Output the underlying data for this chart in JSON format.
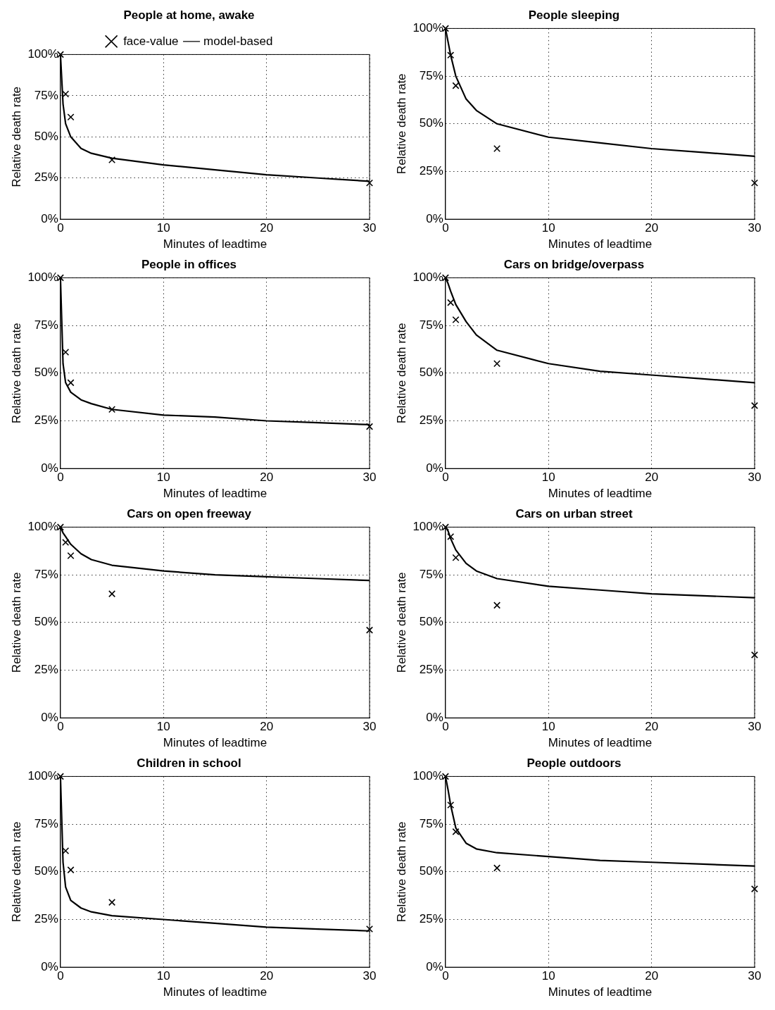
{
  "chart_data": [
    {
      "type": "line",
      "title": "People at home, awake",
      "xlabel": "Minutes of leadtime",
      "ylabel": "Relative death rate",
      "xlim": [
        0,
        30
      ],
      "xticks": [
        0,
        10,
        20,
        30
      ],
      "ylim": [
        0,
        100
      ],
      "yticks": [
        {
          "value": 0,
          "label": "0%"
        },
        {
          "value": 25,
          "label": "25%"
        },
        {
          "value": 50,
          "label": "50%"
        },
        {
          "value": 75,
          "label": "75%"
        },
        {
          "value": 100,
          "label": "100%"
        }
      ],
      "grid": true,
      "legend": "top",
      "series": [
        {
          "name": "model-based",
          "type": "line",
          "color": "#000000",
          "marker": "none",
          "x": [
            0,
            0.25,
            0.5,
            1,
            2,
            3,
            5,
            10,
            15,
            20,
            25,
            30
          ],
          "values": [
            100,
            70,
            58,
            50,
            43,
            40,
            37,
            33,
            30,
            27,
            25,
            23
          ]
        },
        {
          "name": "face-value",
          "type": "scatter",
          "color": "#000000",
          "marker": "cross",
          "x": [
            0,
            0.5,
            1,
            5,
            30
          ],
          "values": [
            100,
            76,
            62,
            36,
            22
          ]
        }
      ]
    },
    {
      "type": "line",
      "title": "People sleeping",
      "xlabel": "Minutes of leadtime",
      "ylabel": "Relative death rate",
      "xlim": [
        0,
        30
      ],
      "xticks": [
        0,
        10,
        20,
        30
      ],
      "ylim": [
        0,
        100
      ],
      "yticks": [
        {
          "value": 0,
          "label": "0%"
        },
        {
          "value": 25,
          "label": "25%"
        },
        {
          "value": 50,
          "label": "50%"
        },
        {
          "value": 75,
          "label": "75%"
        },
        {
          "value": 100,
          "label": "100%"
        }
      ],
      "grid": true,
      "series": [
        {
          "type": "line",
          "color": "#000000",
          "marker": "none",
          "x": [
            0,
            0.25,
            0.5,
            1,
            2,
            3,
            5,
            10,
            15,
            20,
            25,
            30
          ],
          "values": [
            100,
            93,
            86,
            75,
            63,
            57,
            50,
            43,
            40,
            37,
            35,
            33
          ]
        },
        {
          "type": "scatter",
          "color": "#000000",
          "marker": "cross",
          "x": [
            0,
            0.5,
            1,
            5,
            30
          ],
          "values": [
            100,
            86,
            70,
            37,
            19
          ]
        }
      ]
    },
    {
      "type": "line",
      "title": "People in offices",
      "xlabel": "Minutes of leadtime",
      "ylabel": "Relative death rate",
      "xlim": [
        0,
        30
      ],
      "xticks": [
        0,
        10,
        20,
        30
      ],
      "ylim": [
        0,
        100
      ],
      "yticks": [
        {
          "value": 0,
          "label": "0%"
        },
        {
          "value": 25,
          "label": "25%"
        },
        {
          "value": 50,
          "label": "50%"
        },
        {
          "value": 75,
          "label": "75%"
        },
        {
          "value": 100,
          "label": "100%"
        }
      ],
      "grid": true,
      "series": [
        {
          "type": "line",
          "color": "#000000",
          "marker": "none",
          "x": [
            0,
            0.25,
            0.5,
            1,
            2,
            3,
            5,
            10,
            15,
            20,
            25,
            30
          ],
          "values": [
            100,
            55,
            45,
            40,
            36,
            34,
            31,
            28,
            27,
            25,
            24,
            23
          ]
        },
        {
          "type": "scatter",
          "color": "#000000",
          "marker": "cross",
          "x": [
            0,
            0.5,
            1,
            5,
            30
          ],
          "values": [
            100,
            61,
            45,
            31,
            22
          ]
        }
      ]
    },
    {
      "type": "line",
      "title": "Cars on bridge/overpass",
      "xlabel": "Minutes of leadtime",
      "ylabel": "Relative death rate",
      "xlim": [
        0,
        30
      ],
      "xticks": [
        0,
        10,
        20,
        30
      ],
      "ylim": [
        0,
        100
      ],
      "yticks": [
        {
          "value": 0,
          "label": "0%"
        },
        {
          "value": 25,
          "label": "25%"
        },
        {
          "value": 50,
          "label": "50%"
        },
        {
          "value": 75,
          "label": "75%"
        },
        {
          "value": 100,
          "label": "100%"
        }
      ],
      "grid": true,
      "series": [
        {
          "type": "line",
          "color": "#000000",
          "marker": "none",
          "x": [
            0,
            0.25,
            0.5,
            1,
            2,
            3,
            5,
            10,
            15,
            20,
            25,
            30
          ],
          "values": [
            100,
            97,
            93,
            86,
            77,
            70,
            62,
            55,
            51,
            49,
            47,
            45
          ]
        },
        {
          "type": "scatter",
          "color": "#000000",
          "marker": "cross",
          "x": [
            0,
            0.5,
            1,
            5,
            30
          ],
          "values": [
            100,
            87,
            78,
            55,
            33
          ]
        }
      ]
    },
    {
      "type": "line",
      "title": "Cars on open freeway",
      "xlabel": "Minutes of leadtime",
      "ylabel": "Relative death rate",
      "xlim": [
        0,
        30
      ],
      "xticks": [
        0,
        10,
        20,
        30
      ],
      "ylim": [
        0,
        100
      ],
      "yticks": [
        {
          "value": 0,
          "label": "0%"
        },
        {
          "value": 25,
          "label": "25%"
        },
        {
          "value": 50,
          "label": "50%"
        },
        {
          "value": 75,
          "label": "75%"
        },
        {
          "value": 100,
          "label": "100%"
        }
      ],
      "grid": true,
      "series": [
        {
          "type": "line",
          "color": "#000000",
          "marker": "none",
          "x": [
            0,
            0.25,
            0.5,
            1,
            2,
            3,
            5,
            10,
            15,
            20,
            25,
            30
          ],
          "values": [
            100,
            97,
            95,
            91,
            86,
            83,
            80,
            77,
            75,
            74,
            73,
            72
          ]
        },
        {
          "type": "scatter",
          "color": "#000000",
          "marker": "cross",
          "x": [
            0,
            0.5,
            1,
            5,
            30
          ],
          "values": [
            100,
            92,
            85,
            65,
            46
          ]
        }
      ]
    },
    {
      "type": "line",
      "title": "Cars on urban street",
      "xlabel": "Minutes of leadtime",
      "ylabel": "Relative death rate",
      "xlim": [
        0,
        30
      ],
      "xticks": [
        0,
        10,
        20,
        30
      ],
      "ylim": [
        0,
        100
      ],
      "yticks": [
        {
          "value": 0,
          "label": "0%"
        },
        {
          "value": 25,
          "label": "25%"
        },
        {
          "value": 50,
          "label": "50%"
        },
        {
          "value": 75,
          "label": "75%"
        },
        {
          "value": 100,
          "label": "100%"
        }
      ],
      "grid": true,
      "series": [
        {
          "type": "line",
          "color": "#000000",
          "marker": "none",
          "x": [
            0,
            0.25,
            0.5,
            1,
            2,
            3,
            5,
            10,
            15,
            20,
            25,
            30
          ],
          "values": [
            100,
            98,
            94,
            88,
            81,
            77,
            73,
            69,
            67,
            65,
            64,
            63
          ]
        },
        {
          "type": "scatter",
          "color": "#000000",
          "marker": "cross",
          "x": [
            0,
            0.5,
            1,
            5,
            30
          ],
          "values": [
            100,
            95,
            84,
            59,
            33
          ]
        }
      ]
    },
    {
      "type": "line",
      "title": "Children in school",
      "xlabel": "Minutes of leadtime",
      "ylabel": "Relative death rate",
      "xlim": [
        0,
        30
      ],
      "xticks": [
        0,
        10,
        20,
        30
      ],
      "ylim": [
        0,
        100
      ],
      "yticks": [
        {
          "value": 0,
          "label": "0%"
        },
        {
          "value": 25,
          "label": "25%"
        },
        {
          "value": 50,
          "label": "50%"
        },
        {
          "value": 75,
          "label": "75%"
        },
        {
          "value": 100,
          "label": "100%"
        }
      ],
      "grid": true,
      "series": [
        {
          "type": "line",
          "color": "#000000",
          "marker": "none",
          "x": [
            0,
            0.25,
            0.5,
            1,
            2,
            3,
            5,
            10,
            15,
            20,
            25,
            30
          ],
          "values": [
            100,
            55,
            42,
            35,
            31,
            29,
            27,
            25,
            23,
            21,
            20,
            19
          ]
        },
        {
          "type": "scatter",
          "color": "#000000",
          "marker": "cross",
          "x": [
            0,
            0.5,
            1,
            5,
            30
          ],
          "values": [
            100,
            61,
            51,
            34,
            20
          ]
        }
      ]
    },
    {
      "type": "line",
      "title": "People outdoors",
      "xlabel": "Minutes of leadtime",
      "ylabel": "Relative death rate",
      "xlim": [
        0,
        30
      ],
      "xticks": [
        0,
        10,
        20,
        30
      ],
      "ylim": [
        0,
        100
      ],
      "yticks": [
        {
          "value": 0,
          "label": "0%"
        },
        {
          "value": 25,
          "label": "25%"
        },
        {
          "value": 50,
          "label": "50%"
        },
        {
          "value": 75,
          "label": "75%"
        },
        {
          "value": 100,
          "label": "100%"
        }
      ],
      "grid": true,
      "series": [
        {
          "type": "line",
          "color": "#000000",
          "marker": "none",
          "x": [
            0,
            0.25,
            0.5,
            1,
            2,
            3,
            5,
            10,
            15,
            20,
            25,
            30
          ],
          "values": [
            100,
            93,
            85,
            73,
            65,
            62,
            60,
            58,
            56,
            55,
            54,
            53
          ]
        },
        {
          "type": "scatter",
          "color": "#000000",
          "marker": "cross",
          "x": [
            0,
            0.5,
            1,
            5,
            30
          ],
          "values": [
            100,
            85,
            71,
            52,
            41
          ]
        }
      ]
    }
  ]
}
